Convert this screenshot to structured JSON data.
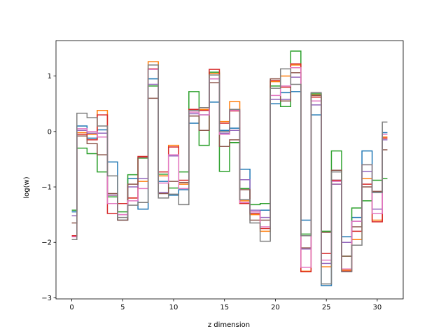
{
  "chart_data": {
    "type": "line",
    "drawstyle": "steps-mid",
    "title": "",
    "xlabel": "z dimension",
    "ylabel": "log(w)",
    "xlim": [
      -1.55,
      32.55
    ],
    "ylim": [
      -3.02,
      1.64
    ],
    "xticks": [
      0,
      5,
      10,
      15,
      20,
      25,
      30
    ],
    "yticks": [
      -3,
      -2,
      -1,
      0,
      1
    ],
    "ytick_labels": [
      "−3",
      "−2",
      "−1",
      "0",
      "1"
    ],
    "grid": false,
    "legend": "none",
    "x": [
      0,
      1,
      2,
      3,
      4,
      5,
      6,
      7,
      8,
      9,
      10,
      11,
      12,
      13,
      14,
      15,
      16,
      17,
      18,
      19,
      20,
      21,
      22,
      23,
      24,
      25,
      26,
      27,
      28,
      29,
      30,
      31
    ],
    "series": [
      {
        "color": "#1f77b4",
        "values": [
          -1.45,
          0.1,
          -0.12,
          0.03,
          -0.55,
          -1.6,
          -0.85,
          -1.4,
          0.95,
          -0.9,
          -1.15,
          -1.05,
          0.15,
          0.3,
          0.53,
          0.02,
          0.06,
          -0.68,
          -1.45,
          -1.42,
          0.5,
          0.7,
          0.72,
          -1.6,
          0.3,
          -2.78,
          -0.88,
          -1.9,
          -1.55,
          -0.35,
          -1.1,
          -0.02
        ]
      },
      {
        "color": "#ff7f0e",
        "values": [
          -1.9,
          -0.02,
          -0.05,
          0.38,
          -1.15,
          -1.3,
          -1.2,
          -0.9,
          1.26,
          -0.8,
          -0.25,
          -0.95,
          0.4,
          0.4,
          1.05,
          0.18,
          0.54,
          -1.25,
          -1.5,
          -1.8,
          0.9,
          1.0,
          1.2,
          -2.52,
          0.66,
          -2.44,
          -0.95,
          -2.5,
          -1.95,
          -0.85,
          -1.6,
          -0.1
        ]
      },
      {
        "color": "#2ca02c",
        "values": [
          -1.42,
          -0.3,
          -0.4,
          -0.73,
          -1.18,
          -1.45,
          -0.78,
          -0.48,
          0.82,
          -0.77,
          -1.02,
          -0.73,
          0.72,
          -0.25,
          1.07,
          -0.72,
          -0.2,
          -1.03,
          -1.32,
          -1.3,
          0.82,
          0.45,
          1.45,
          -1.85,
          0.68,
          -1.8,
          -0.35,
          -2.25,
          -1.38,
          -1.25,
          -0.88,
          -0.85
        ]
      },
      {
        "color": "#d62728",
        "values": [
          -1.88,
          -0.05,
          -0.15,
          0.3,
          -1.48,
          -1.3,
          -1.2,
          -0.45,
          1.13,
          -0.73,
          -0.28,
          -0.88,
          0.4,
          0.38,
          1.12,
          0.15,
          0.37,
          -1.3,
          -1.48,
          -1.75,
          0.92,
          0.8,
          1.22,
          -2.53,
          0.62,
          -2.2,
          -0.88,
          -2.52,
          -1.8,
          -0.95,
          -1.63,
          -0.12
        ]
      },
      {
        "color": "#9467bd",
        "values": [
          -1.52,
          0.02,
          -0.03,
          -0.03,
          -1.15,
          -1.5,
          -1.0,
          -0.85,
          0.85,
          -1.1,
          -0.44,
          -0.92,
          0.32,
          0.3,
          0.95,
          -0.03,
          0.02,
          -0.87,
          -1.42,
          -1.55,
          0.58,
          0.58,
          0.98,
          -2.12,
          0.48,
          -2.38,
          -0.95,
          -2.0,
          -1.62,
          -0.72,
          -1.4,
          -0.15
        ]
      },
      {
        "color": "#8c564b",
        "values": [
          -1.65,
          -0.08,
          -0.22,
          -0.42,
          -1.12,
          -1.6,
          -0.95,
          -0.47,
          0.6,
          -1.12,
          -0.9,
          -0.92,
          0.28,
          0.02,
          0.88,
          -0.27,
          -0.15,
          -1.05,
          -1.6,
          -1.6,
          0.95,
          0.55,
          1.06,
          -2.1,
          0.65,
          -1.82,
          -0.7,
          -2.25,
          -1.72,
          -1.0,
          -1.08,
          -0.33
        ]
      },
      {
        "color": "#e377c2",
        "values": [
          -1.9,
          0.05,
          0.0,
          -0.1,
          -1.3,
          -1.5,
          -1.25,
          -1.03,
          1.12,
          -0.93,
          -0.42,
          -1.03,
          0.35,
          0.3,
          0.95,
          -0.05,
          0.38,
          -1.28,
          -1.45,
          -1.72,
          0.65,
          0.82,
          1.15,
          -2.45,
          0.55,
          -2.32,
          -0.9,
          -2.48,
          -1.62,
          -0.6,
          -1.48,
          -0.05
        ]
      },
      {
        "color": "#7f7f7f",
        "values": [
          -1.95,
          0.33,
          0.25,
          0.1,
          -0.8,
          -1.55,
          -1.33,
          -1.28,
          1.2,
          -1.2,
          -1.13,
          -1.32,
          0.38,
          0.43,
          1.02,
          0.0,
          0.4,
          -1.23,
          -1.65,
          -1.98,
          0.78,
          1.13,
          0.85,
          -1.88,
          0.7,
          -2.75,
          -0.73,
          -2.53,
          -2.05,
          -0.6,
          -1.1,
          0.17
        ]
      }
    ]
  }
}
